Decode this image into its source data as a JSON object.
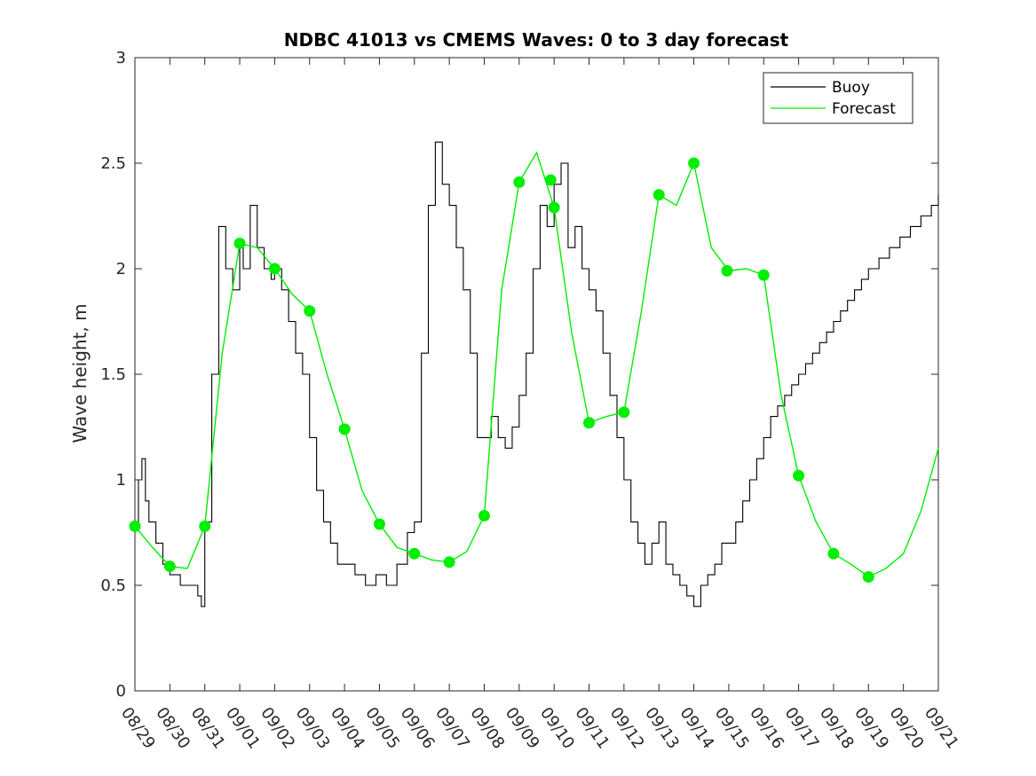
{
  "chart_data": {
    "type": "line",
    "title": "NDBC 41013 vs CMEMS Waves: 0 to 3 day forecast",
    "xlabel": "",
    "ylabel": "Wave height, m",
    "xlim": [
      0,
      23
    ],
    "ylim": [
      0,
      3
    ],
    "x_ticks": [
      "08/29",
      "08/30",
      "08/31",
      "09/01",
      "09/02",
      "09/03",
      "09/04",
      "09/05",
      "09/06",
      "09/07",
      "09/08",
      "09/09",
      "09/10",
      "09/11",
      "09/12",
      "09/13",
      "09/14",
      "09/15",
      "09/16",
      "09/17",
      "09/18",
      "09/19",
      "09/20",
      "09/21"
    ],
    "y_ticks": [
      0,
      0.5,
      1,
      1.5,
      2,
      2.5,
      3
    ],
    "y_tick_labels": [
      "0",
      "0.5",
      "1",
      "1.5",
      "2",
      "2.5",
      "3"
    ],
    "grid": false,
    "legend": {
      "placement": "top-right",
      "entries": [
        "Buoy",
        "Forecast"
      ]
    },
    "colors": {
      "buoy": "#000000",
      "forecast": "#00ee00",
      "markers": "#00ee00"
    },
    "series": [
      {
        "name": "Buoy",
        "x": [
          0,
          0.1,
          0.2,
          0.3,
          0.4,
          0.6,
          0.8,
          1.0,
          1.3,
          1.6,
          1.8,
          1.9,
          2.0,
          2.2,
          2.4,
          2.6,
          2.8,
          3.0,
          3.1,
          3.3,
          3.5,
          3.7,
          3.9,
          4.0,
          4.2,
          4.4,
          4.6,
          4.8,
          5.0,
          5.2,
          5.4,
          5.6,
          5.8,
          6.0,
          6.3,
          6.6,
          6.9,
          7.2,
          7.5,
          7.8,
          8.0,
          8.2,
          8.4,
          8.6,
          8.8,
          9.0,
          9.2,
          9.4,
          9.6,
          9.8,
          10.0,
          10.2,
          10.4,
          10.6,
          10.8,
          11.0,
          11.2,
          11.4,
          11.6,
          11.8,
          12.0,
          12.2,
          12.4,
          12.6,
          12.8,
          13.0,
          13.2,
          13.4,
          13.6,
          13.8,
          14.0,
          14.2,
          14.4,
          14.6,
          14.8,
          15.0,
          15.2,
          15.4,
          15.6,
          15.8,
          16.0,
          16.2,
          16.4,
          16.6,
          16.8,
          17.0,
          17.2,
          17.4,
          17.6,
          17.8,
          18.0,
          18.2,
          18.4,
          18.6,
          18.8,
          19.0,
          19.2,
          19.4,
          19.6,
          19.8,
          20.0,
          20.2,
          20.4,
          20.6,
          20.8,
          21.0,
          21.3,
          21.6,
          21.9,
          22.2,
          22.5,
          22.8,
          23.0
        ],
        "y": [
          0.8,
          1.0,
          1.1,
          0.9,
          0.8,
          0.7,
          0.6,
          0.55,
          0.5,
          0.5,
          0.45,
          0.4,
          0.8,
          1.5,
          2.2,
          2.0,
          1.9,
          2.1,
          2.0,
          2.3,
          2.1,
          2.0,
          1.95,
          2.0,
          1.9,
          1.75,
          1.6,
          1.5,
          1.2,
          0.95,
          0.8,
          0.7,
          0.6,
          0.6,
          0.55,
          0.5,
          0.55,
          0.5,
          0.6,
          0.75,
          0.8,
          1.6,
          2.3,
          2.6,
          2.4,
          2.3,
          2.1,
          1.9,
          1.6,
          1.2,
          1.2,
          1.3,
          1.2,
          1.15,
          1.25,
          1.4,
          1.6,
          2.0,
          2.3,
          2.2,
          2.4,
          2.5,
          2.1,
          2.2,
          2.0,
          1.9,
          1.8,
          1.6,
          1.4,
          1.2,
          1.0,
          0.8,
          0.7,
          0.6,
          0.7,
          0.8,
          0.6,
          0.55,
          0.5,
          0.45,
          0.4,
          0.5,
          0.55,
          0.6,
          0.7,
          0.7,
          0.8,
          0.9,
          1.0,
          1.1,
          1.2,
          1.3,
          1.35,
          1.4,
          1.45,
          1.5,
          1.55,
          1.6,
          1.65,
          1.7,
          1.75,
          1.8,
          1.85,
          1.9,
          1.95,
          2.0,
          2.05,
          2.1,
          2.15,
          2.2,
          2.25,
          2.3,
          2.35
        ]
      },
      {
        "name": "Forecast",
        "x": [
          0,
          0.5,
          1.0,
          1.5,
          2.0,
          2.5,
          3.0,
          3.5,
          4.0,
          4.5,
          5.0,
          5.5,
          6.0,
          6.5,
          7.0,
          7.5,
          8.0,
          8.5,
          9.0,
          9.5,
          10.0,
          10.5,
          11.0,
          11.5,
          12.0,
          12.5,
          13.0,
          13.5,
          14.0,
          14.5,
          15.0,
          15.5,
          16.0,
          16.5,
          17.0,
          17.5,
          18.0,
          18.5,
          19.0,
          19.5,
          20.0,
          20.5,
          21.0,
          21.5,
          22.0,
          22.5,
          23.0
        ],
        "y": [
          0.78,
          0.68,
          0.59,
          0.58,
          0.78,
          1.6,
          2.12,
          2.1,
          2.0,
          1.88,
          1.8,
          1.5,
          1.24,
          0.95,
          0.79,
          0.68,
          0.65,
          0.62,
          0.61,
          0.66,
          0.83,
          1.9,
          2.41,
          2.55,
          2.29,
          1.7,
          1.27,
          1.3,
          1.32,
          1.8,
          2.35,
          2.3,
          2.5,
          2.1,
          1.99,
          2.0,
          1.97,
          1.4,
          1.02,
          0.8,
          0.65,
          0.6,
          0.54,
          0.58,
          0.65,
          0.85,
          1.15
        ]
      }
    ],
    "markers": {
      "x": [
        0,
        1,
        2,
        3,
        4,
        5,
        6,
        7,
        8,
        9,
        10,
        11,
        11.9,
        12,
        13,
        14,
        15,
        16,
        16.95,
        18,
        19,
        20,
        21
      ],
      "y": [
        0.78,
        0.59,
        0.78,
        2.12,
        2.0,
        1.8,
        1.24,
        0.79,
        0.65,
        0.61,
        0.83,
        2.41,
        2.42,
        2.29,
        1.27,
        1.32,
        2.35,
        2.5,
        1.99,
        1.97,
        1.02,
        0.65,
        0.54
      ]
    }
  }
}
